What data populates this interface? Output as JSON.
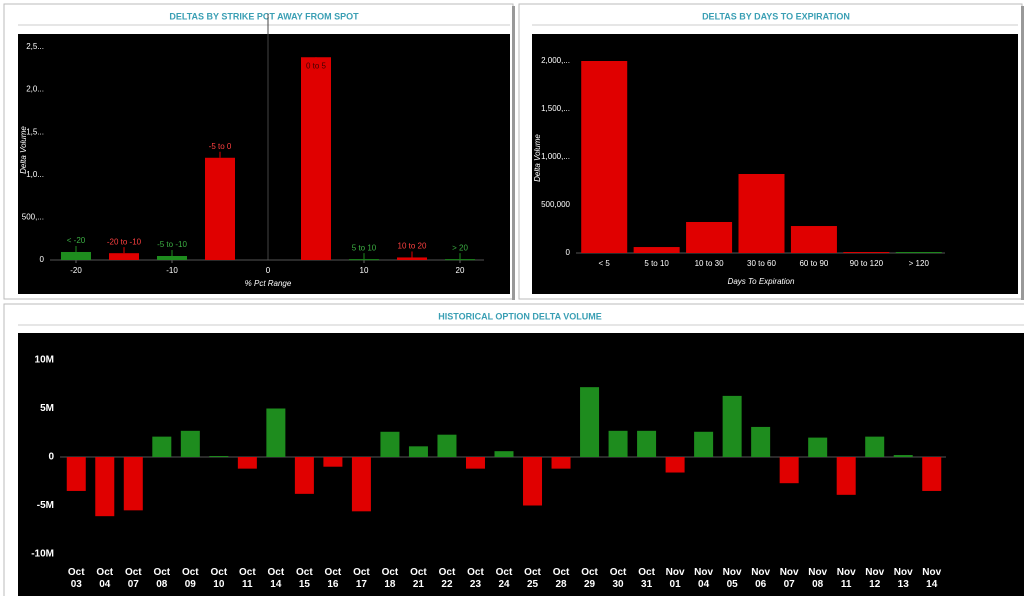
{
  "chart_data": [
    {
      "type": "bar",
      "title": "DELTAS BY STRIKE PCT AWAY FROM SPOT",
      "ylabel": "Delta Volume",
      "xlabel": "% Pct Range",
      "categories": [
        "< -20",
        "-20 to -10",
        "-5 to -10",
        "-5 to 0",
        "0 to 5",
        "5 to 10",
        "10 to 20",
        "> 20"
      ],
      "x": [
        -20,
        -15,
        -10,
        -5,
        5,
        10,
        15,
        20
      ],
      "values": [
        94000,
        80000,
        47000,
        1200000,
        2380000,
        10000,
        30000,
        10000
      ],
      "colors": [
        "#1e8c1e",
        "#e00000",
        "#1e8c1e",
        "#e00000",
        "#e00000",
        "#1e8c1e",
        "#e00000",
        "#1e8c1e"
      ],
      "xlim": [
        -22.5,
        22.5
      ],
      "xticks": [
        -20,
        -10,
        0,
        10,
        20
      ],
      "ylim": [
        0,
        2600000
      ],
      "yticks": [
        0,
        {
          "value": 500000,
          "label": "500,..."
        },
        {
          "value": 1000000,
          "label": "1,0..."
        },
        {
          "value": 1500000,
          "label": "1,5..."
        },
        {
          "value": 2000000,
          "label": "2,0..."
        },
        {
          "value": 2500000,
          "label": "2,5..."
        }
      ]
    },
    {
      "type": "bar",
      "title": "DELTAS BY DAYS TO EXPIRATION",
      "ylabel": "Delta Volume",
      "xlabel": "Days To Expiration",
      "categories": [
        "< 5",
        "5 to 10",
        "10 to 30",
        "30 to 60",
        "60 to 90",
        "90 to 120",
        "> 120"
      ],
      "values": [
        2000000,
        62000,
        323000,
        823000,
        281000,
        10000,
        10000
      ],
      "color": "#e00000",
      "last_color": "#1e8c1e",
      "ylim": [
        0,
        2150000
      ],
      "yticks": [
        0,
        {
          "value": 500000,
          "label": "500,000"
        },
        {
          "value": 1000000,
          "label": "1,000,..."
        },
        {
          "value": 1500000,
          "label": "1,500,..."
        },
        {
          "value": 2000000,
          "label": "2,000,..."
        }
      ]
    },
    {
      "type": "bar",
      "title": "HISTORICAL OPTION DELTA VOLUME",
      "categories": [
        "Oct 03",
        "Oct 04",
        "Oct 07",
        "Oct 08",
        "Oct 09",
        "Oct 10",
        "Oct 11",
        "Oct 14",
        "Oct 15",
        "Oct 16",
        "Oct 17",
        "Oct 18",
        "Oct 21",
        "Oct 22",
        "Oct 23",
        "Oct 24",
        "Oct 25",
        "Oct 28",
        "Oct 29",
        "Oct 30",
        "Oct 31",
        "Nov 01",
        "Nov 04",
        "Nov 05",
        "Nov 06",
        "Nov 07",
        "Nov 08",
        "Nov 11",
        "Nov 12",
        "Nov 13",
        "Nov 14"
      ],
      "values": [
        -3500000,
        -6100000,
        -5500000,
        2100000,
        2700000,
        100000,
        -1200000,
        5000000,
        -3800000,
        -1000000,
        -5600000,
        2600000,
        1100000,
        2300000,
        -1200000,
        600000,
        -5000000,
        -1200000,
        7200000,
        2700000,
        2700000,
        -1600000,
        2600000,
        6300000,
        3100000,
        -2700000,
        2000000,
        -3900000,
        2100000,
        200000,
        -3500000
      ],
      "positive_color": "#1e8c1e",
      "negative_color": "#e00000",
      "ylim": [
        -11000000,
        12000000
      ],
      "yticks": [
        {
          "value": -10000000,
          "label": "-10M"
        },
        {
          "value": -5000000,
          "label": "-5M"
        },
        0,
        {
          "value": 5000000,
          "label": "5M"
        },
        {
          "value": 10000000,
          "label": "10M"
        }
      ]
    }
  ]
}
